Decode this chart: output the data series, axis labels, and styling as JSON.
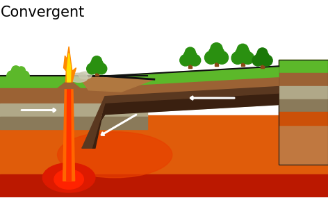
{
  "title": "Convergent",
  "title_fontsize": 15,
  "bg_color": "#ffffff",
  "figsize": [
    4.72,
    2.85
  ],
  "dpi": 100,
  "colors": {
    "grass_green": "#5cb82a",
    "grass_dark": "#3d8a1a",
    "soil_brown": "#9b6234",
    "soil_mid": "#b07840",
    "soil_light": "#c8a060",
    "rock_gray": "#b0a888",
    "rock_dark": "#8a7a5a",
    "rock_mid": "#a09070",
    "mantle_orange": "#e05c0a",
    "mantle_orange2": "#cc5008",
    "mantle_red": "#bb1800",
    "lava_orange": "#ff6600",
    "lava_red": "#dd1a00",
    "lava_bright": "#ff3300",
    "flame_yellow": "#ffe000",
    "flame_orange": "#ff8800",
    "flame_red": "#ff4400",
    "subduct_dark": "#3a2010",
    "subduct_mid": "#5a3820",
    "arrow_white": "#ffffff",
    "smoke_gray": "#c8c8b0",
    "tree_green": "#2a9010",
    "tree_green2": "#1a7808",
    "tree_brown": "#8a4a18",
    "black": "#111111",
    "side_brown": "#c07840",
    "side_dark": "#a06030"
  }
}
